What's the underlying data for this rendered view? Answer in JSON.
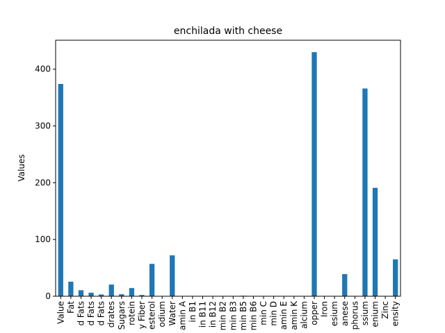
{
  "chart_data": {
    "type": "bar",
    "title": "enchilada with cheese",
    "xlabel": "",
    "ylabel": "Values",
    "ylim": [
      0,
      451
    ],
    "yticks": [
      0,
      100,
      200,
      300,
      400
    ],
    "grid": false,
    "categories": [
      "Value",
      "Fat",
      "d Fats",
      "d Fats",
      "d Fats",
      "drates",
      "Sugars",
      "rotein",
      "y Fiber",
      "esterol",
      "odium",
      "Water",
      "amin A",
      "in B1",
      "in B11",
      "in B12",
      "min B2",
      "min B3",
      "min B5",
      "min B6",
      "min C",
      "min D",
      "amin E",
      "amin K",
      "alcium",
      "opper",
      "Iron",
      "esium",
      "anese",
      "phorus",
      "ssium",
      "enium",
      "Zinc",
      "ensity"
    ],
    "values": [
      374,
      25.6,
      10.6,
      6.2,
      3.1,
      20.6,
      3.5,
      14.4,
      2.2,
      57,
      0.6,
      72,
      0.1,
      0.1,
      0.1,
      0.1,
      0.2,
      0.5,
      0.9,
      0.3,
      0.1,
      0.1,
      0.1,
      0.6,
      0.3,
      430,
      0.2,
      0.6,
      39,
      0.2,
      366,
      191,
      0.1,
      65
    ]
  }
}
